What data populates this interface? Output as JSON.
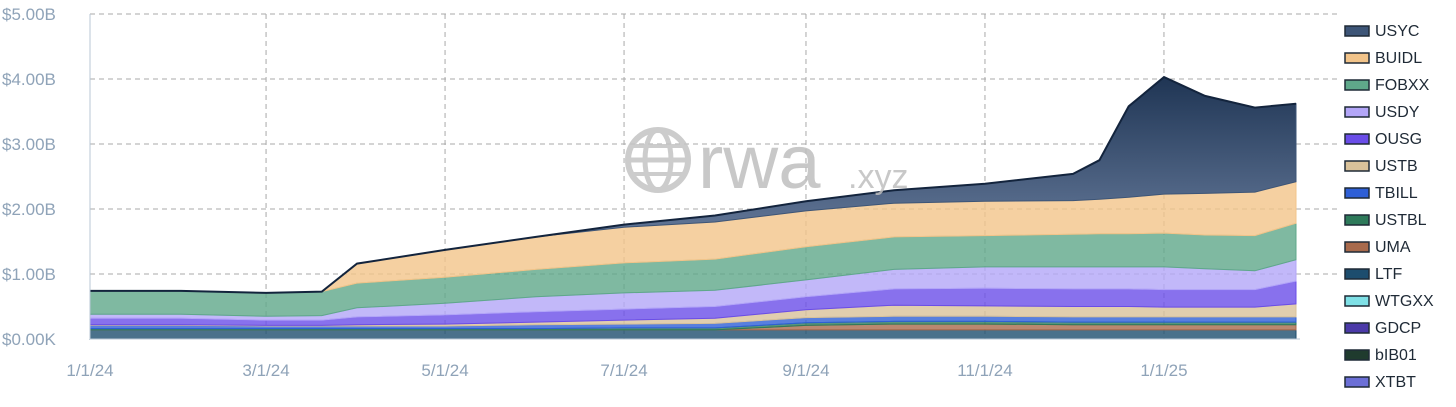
{
  "watermark": {
    "main": "rwa",
    "suffix": ".xyz"
  },
  "chart_data": {
    "type": "area",
    "stacked": true,
    "grid": true,
    "legend_placement": "right",
    "x": [
      "2024-01-01",
      "2024-02-01",
      "2024-03-01",
      "2024-03-20",
      "2024-04-01",
      "2024-05-01",
      "2024-06-01",
      "2024-07-01",
      "2024-08-01",
      "2024-09-01",
      "2024-10-01",
      "2024-11-01",
      "2024-12-01",
      "2024-12-10",
      "2024-12-20",
      "2025-01-01",
      "2025-01-15",
      "2025-02-01",
      "2025-02-15"
    ],
    "x_ticks": [
      "1/1/24",
      "3/1/24",
      "5/1/24",
      "7/1/24",
      "9/1/24",
      "11/1/24",
      "1/1/25"
    ],
    "x_tick_dates": [
      "2024-01-01",
      "2024-03-01",
      "2024-05-01",
      "2024-07-01",
      "2024-09-01",
      "2024-11-01",
      "2025-01-01"
    ],
    "x_range": [
      "2024-01-01",
      "2025-02-15"
    ],
    "ylim": [
      0,
      5000000000
    ],
    "y_ticks": [
      "$0.00K",
      "$1.00B",
      "$2.00B",
      "$3.00B",
      "$4.00B",
      "$5.00B"
    ],
    "y_tick_values": [
      0,
      1000000000,
      2000000000,
      3000000000,
      4000000000,
      5000000000
    ],
    "series": [
      {
        "name": "XTBT",
        "color": "#6b6fd6",
        "values": [
          0,
          0,
          0,
          0,
          0,
          0,
          0,
          0,
          0,
          0,
          0,
          0,
          0,
          0,
          0,
          0,
          0,
          0,
          0
        ]
      },
      {
        "name": "bIB01",
        "color": "#1f3b2e",
        "values": [
          0,
          0,
          0,
          0,
          0,
          0,
          0,
          0,
          0,
          0,
          0,
          0,
          0,
          0,
          0,
          0,
          0,
          0,
          0
        ]
      },
      {
        "name": "GDCP",
        "color": "#4b3aa8",
        "values": [
          0,
          0,
          0,
          0,
          0,
          0,
          0,
          0,
          0,
          0,
          0,
          0,
          0,
          0,
          0,
          0,
          0,
          0,
          0
        ]
      },
      {
        "name": "WTGXX",
        "color": "#7fe0e6",
        "values": [
          0,
          0,
          0,
          0,
          0,
          0,
          0,
          0,
          0,
          0,
          0,
          0,
          0,
          0,
          0,
          0,
          0,
          0,
          0
        ]
      },
      {
        "name": "LTF",
        "color": "#1d4d6e",
        "values": [
          140,
          140,
          140,
          140,
          140,
          140,
          140,
          140,
          140,
          140,
          140,
          140,
          140,
          140,
          140,
          140,
          140,
          140,
          140
        ]
      },
      {
        "name": "UMA",
        "color": "#a86a4c",
        "values": [
          0,
          0,
          0,
          0,
          0,
          0,
          0,
          0,
          0,
          70,
          90,
          90,
          80,
          80,
          80,
          80,
          80,
          80,
          80
        ]
      },
      {
        "name": "USTBL",
        "color": "#2e7a5a",
        "values": [
          20,
          20,
          20,
          20,
          20,
          20,
          20,
          30,
          30,
          40,
          40,
          40,
          40,
          40,
          40,
          40,
          40,
          40,
          40
        ]
      },
      {
        "name": "TBILL",
        "color": "#2e5fd6",
        "values": [
          50,
          50,
          40,
          40,
          40,
          40,
          60,
          60,
          70,
          80,
          80,
          80,
          80,
          80,
          80,
          80,
          80,
          80,
          80
        ]
      },
      {
        "name": "USTB",
        "color": "#d9c29a",
        "values": [
          10,
          10,
          10,
          10,
          20,
          30,
          40,
          60,
          80,
          120,
          170,
          160,
          160,
          160,
          160,
          150,
          150,
          150,
          200
        ]
      },
      {
        "name": "OUSG",
        "color": "#6a4de8",
        "values": [
          100,
          100,
          80,
          80,
          120,
          140,
          160,
          170,
          180,
          200,
          250,
          270,
          270,
          270,
          270,
          270,
          270,
          270,
          350
        ]
      },
      {
        "name": "USDY",
        "color": "#b3a6f8",
        "values": [
          60,
          60,
          60,
          70,
          140,
          180,
          230,
          250,
          250,
          260,
          300,
          330,
          340,
          340,
          340,
          350,
          320,
          290,
          330
        ]
      },
      {
        "name": "FOBXX",
        "color": "#5fa88a",
        "values": [
          360,
          360,
          360,
          370,
          380,
          400,
          420,
          460,
          480,
          510,
          500,
          480,
          500,
          510,
          510,
          520,
          520,
          540,
          560
        ]
      },
      {
        "name": "BUIDL",
        "color": "#f2c48a",
        "values": [
          0,
          0,
          0,
          0,
          300,
          420,
          500,
          550,
          570,
          550,
          520,
          530,
          520,
          530,
          560,
          600,
          640,
          670,
          640
        ]
      },
      {
        "name": "USYC",
        "color": "#3d5577",
        "values": [
          0,
          0,
          0,
          0,
          0,
          0,
          0,
          40,
          100,
          150,
          200,
          270,
          410,
          600,
          1400,
          1800,
          1500,
          1300,
          1200
        ]
      }
    ],
    "value_unit_note": "values in $ millions"
  },
  "legend_order": [
    "USYC",
    "BUIDL",
    "FOBXX",
    "USDY",
    "OUSG",
    "USTB",
    "TBILL",
    "USTBL",
    "UMA",
    "LTF",
    "WTGXX",
    "GDCP",
    "bIB01",
    "XTBT"
  ]
}
